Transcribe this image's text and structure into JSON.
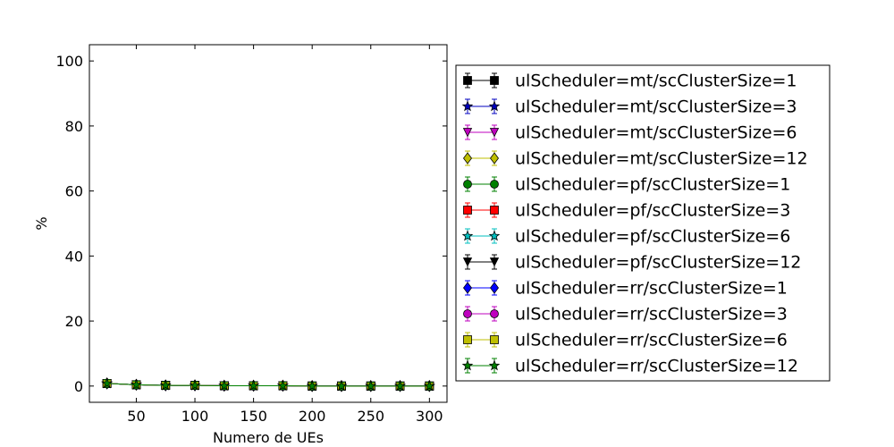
{
  "chart_data": {
    "type": "line",
    "title": "",
    "xlabel": "Numero de UEs",
    "ylabel": "%",
    "xlim": [
      10,
      315
    ],
    "ylim": [
      -5,
      105
    ],
    "xticks": [
      50,
      100,
      150,
      200,
      250,
      300
    ],
    "yticks": [
      0,
      20,
      40,
      60,
      80,
      100
    ],
    "grid": false,
    "legend_position": "outside-right",
    "x": [
      25,
      50,
      75,
      100,
      125,
      150,
      175,
      200,
      225,
      250,
      275,
      300
    ],
    "series": [
      {
        "name": "ulScheduler=mt/scClusterSize=1",
        "color": "#000000",
        "marker": "square",
        "values": [
          0.8,
          0.4,
          0.2,
          0.2,
          0.1,
          0.1,
          0.1,
          0.0,
          0.0,
          0.0,
          0.0,
          0.0
        ]
      },
      {
        "name": "ulScheduler=mt/scClusterSize=3",
        "color": "#0000bf",
        "marker": "star",
        "values": [
          0.8,
          0.4,
          0.2,
          0.2,
          0.1,
          0.1,
          0.1,
          0.0,
          0.0,
          0.0,
          0.0,
          0.0
        ]
      },
      {
        "name": "ulScheduler=mt/scClusterSize=6",
        "color": "#bf00bf",
        "marker": "triangle-down",
        "values": [
          0.8,
          0.4,
          0.2,
          0.2,
          0.1,
          0.1,
          0.1,
          0.0,
          0.0,
          0.0,
          0.0,
          0.0
        ]
      },
      {
        "name": "ulScheduler=mt/scClusterSize=12",
        "color": "#bfbf00",
        "marker": "diamond",
        "values": [
          0.8,
          0.4,
          0.2,
          0.2,
          0.1,
          0.1,
          0.1,
          0.0,
          0.0,
          0.0,
          0.0,
          0.0
        ]
      },
      {
        "name": "ulScheduler=pf/scClusterSize=1",
        "color": "#008000",
        "marker": "circle",
        "values": [
          0.8,
          0.4,
          0.2,
          0.2,
          0.1,
          0.1,
          0.1,
          0.0,
          0.0,
          0.0,
          0.0,
          0.0
        ]
      },
      {
        "name": "ulScheduler=pf/scClusterSize=3",
        "color": "#ff0000",
        "marker": "square",
        "values": [
          0.8,
          0.4,
          0.2,
          0.2,
          0.1,
          0.1,
          0.1,
          0.0,
          0.0,
          0.0,
          0.0,
          0.0
        ]
      },
      {
        "name": "ulScheduler=pf/scClusterSize=6",
        "color": "#00bfbf",
        "marker": "star",
        "values": [
          0.8,
          0.4,
          0.2,
          0.2,
          0.1,
          0.1,
          0.1,
          0.0,
          0.0,
          0.0,
          0.0,
          0.0
        ]
      },
      {
        "name": "ulScheduler=pf/scClusterSize=12",
        "color": "#000000",
        "marker": "triangle-down",
        "values": [
          0.8,
          0.4,
          0.2,
          0.2,
          0.1,
          0.1,
          0.1,
          0.0,
          0.0,
          0.0,
          0.0,
          0.0
        ]
      },
      {
        "name": "ulScheduler=rr/scClusterSize=1",
        "color": "#0000ff",
        "marker": "diamond",
        "values": [
          0.8,
          0.4,
          0.2,
          0.2,
          0.1,
          0.1,
          0.1,
          0.0,
          0.0,
          0.0,
          0.0,
          0.0
        ]
      },
      {
        "name": "ulScheduler=rr/scClusterSize=3",
        "color": "#bf00bf",
        "marker": "circle",
        "values": [
          0.8,
          0.4,
          0.2,
          0.2,
          0.1,
          0.1,
          0.1,
          0.0,
          0.0,
          0.0,
          0.0,
          0.0
        ]
      },
      {
        "name": "ulScheduler=rr/scClusterSize=6",
        "color": "#bfbf00",
        "marker": "square",
        "values": [
          0.8,
          0.4,
          0.2,
          0.2,
          0.1,
          0.1,
          0.1,
          0.0,
          0.0,
          0.0,
          0.0,
          0.0
        ]
      },
      {
        "name": "ulScheduler=rr/scClusterSize=12",
        "color": "#008000",
        "marker": "star",
        "values": [
          0.8,
          0.4,
          0.2,
          0.2,
          0.1,
          0.1,
          0.1,
          0.0,
          0.0,
          0.0,
          0.0,
          0.0
        ]
      }
    ]
  }
}
